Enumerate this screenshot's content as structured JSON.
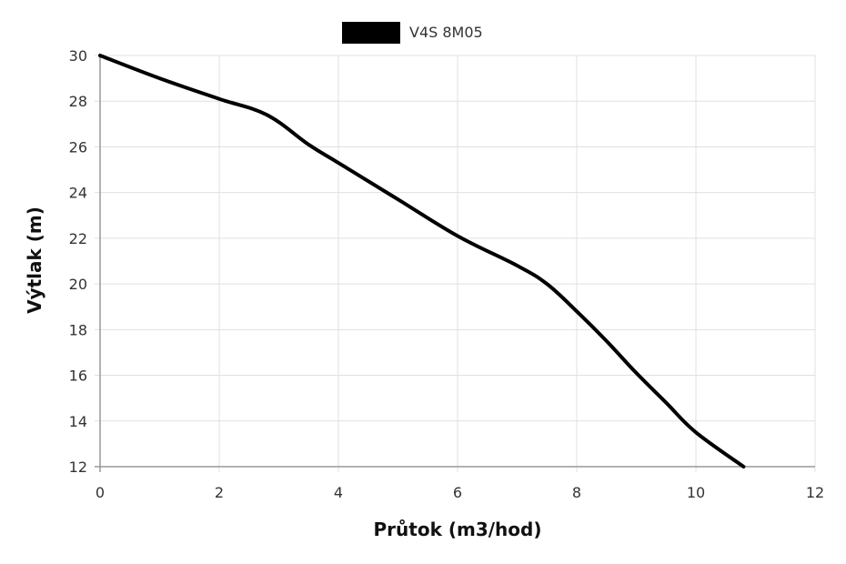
{
  "chart_data": {
    "type": "line",
    "xlabel": "Průtok (m3/hod)",
    "ylabel": "Výtlak (m)",
    "xlim": [
      0,
      12
    ],
    "ylim": [
      12,
      30
    ],
    "x_ticks": [
      "0",
      "2",
      "4",
      "6",
      "8",
      "10",
      "12"
    ],
    "y_ticks": [
      "12",
      "14",
      "16",
      "18",
      "20",
      "22",
      "24",
      "26",
      "28",
      "30"
    ],
    "grid": true,
    "legend_position": "top-center",
    "series": [
      {
        "name": "V4S 8M05",
        "color": "#000000",
        "x": [
          0,
          1,
          2,
          2.8,
          3.5,
          4,
          5,
          6,
          7,
          7.5,
          8,
          8.5,
          9,
          9.5,
          10,
          10.8
        ],
        "y": [
          30,
          29,
          28.1,
          27.4,
          26.1,
          25.3,
          23.7,
          22.1,
          20.8,
          20,
          18.8,
          17.5,
          16.1,
          14.8,
          13.5,
          12
        ]
      }
    ]
  }
}
